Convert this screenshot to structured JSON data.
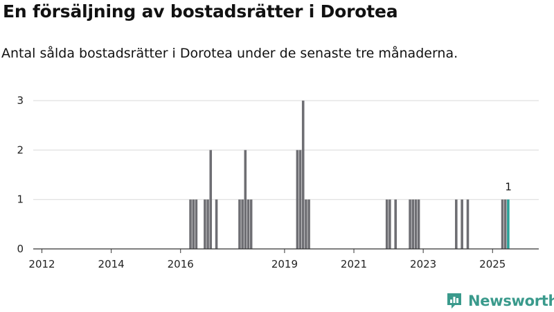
{
  "title": "En försäljning av bostadsrätter i Dorotea",
  "subtitle": "Antal sålda bostadsrätter i Dorotea under de senaste tre månaderna.",
  "brand": {
    "name": "Newsworthy",
    "color": "#3a9a8c",
    "icon": "bar-chart-logo-icon"
  },
  "colors": {
    "bar": "#6e6e73",
    "highlight": "#2aa198",
    "grid": "#d9d9d9",
    "axis": "#333333"
  },
  "chart_data": {
    "type": "bar",
    "x_start": "2011-10",
    "x_end": "2026-05",
    "ylim": [
      0,
      3.1
    ],
    "yticks": [
      0,
      1,
      2,
      3
    ],
    "xticks": [
      "2012",
      "2014",
      "2016",
      "2019",
      "2021",
      "2023",
      "2025"
    ],
    "xtick_positions": [
      "2012-01",
      "2014-01",
      "2016-01",
      "2019-01",
      "2021-01",
      "2023-01",
      "2025-01"
    ],
    "grid": true,
    "legend": "none",
    "data": [
      {
        "month": "2016-04",
        "value": 1
      },
      {
        "month": "2016-05",
        "value": 1
      },
      {
        "month": "2016-06",
        "value": 1
      },
      {
        "month": "2016-09",
        "value": 1
      },
      {
        "month": "2016-10",
        "value": 1
      },
      {
        "month": "2016-11",
        "value": 2
      },
      {
        "month": "2017-01",
        "value": 1
      },
      {
        "month": "2017-09",
        "value": 1
      },
      {
        "month": "2017-10",
        "value": 1
      },
      {
        "month": "2017-11",
        "value": 2
      },
      {
        "month": "2017-12",
        "value": 1
      },
      {
        "month": "2018-01",
        "value": 1
      },
      {
        "month": "2019-05",
        "value": 2
      },
      {
        "month": "2019-06",
        "value": 2
      },
      {
        "month": "2019-07",
        "value": 3
      },
      {
        "month": "2019-08",
        "value": 1
      },
      {
        "month": "2019-09",
        "value": 1
      },
      {
        "month": "2021-12",
        "value": 1
      },
      {
        "month": "2022-01",
        "value": 1
      },
      {
        "month": "2022-03",
        "value": 1
      },
      {
        "month": "2022-08",
        "value": 1
      },
      {
        "month": "2022-09",
        "value": 1
      },
      {
        "month": "2022-10",
        "value": 1
      },
      {
        "month": "2022-11",
        "value": 1
      },
      {
        "month": "2023-12",
        "value": 1
      },
      {
        "month": "2024-02",
        "value": 1
      },
      {
        "month": "2024-04",
        "value": 1
      },
      {
        "month": "2025-04",
        "value": 1
      },
      {
        "month": "2025-05",
        "value": 1
      },
      {
        "month": "2025-06",
        "value": 1
      }
    ],
    "highlight": {
      "month": "2025-06",
      "label": "1"
    }
  }
}
